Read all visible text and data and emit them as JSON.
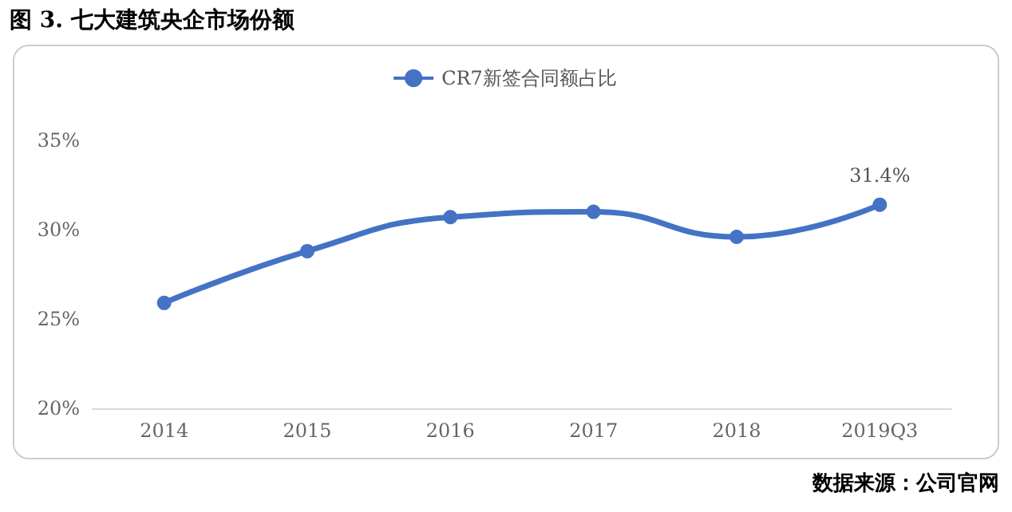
{
  "chart_data": {
    "type": "line",
    "title": "图 3. 七大建筑央企市场份额",
    "categories": [
      "2014",
      "2015",
      "2016",
      "2017",
      "2018",
      "2019Q3"
    ],
    "series": [
      {
        "name": "CR7新签合同额占比",
        "color": "#4472c4",
        "values": [
          25.9,
          28.8,
          30.7,
          31.0,
          29.6,
          31.4
        ],
        "value_labels": [
          null,
          null,
          null,
          null,
          null,
          "31.4%"
        ]
      }
    ],
    "ylim": [
      20,
      35
    ],
    "yticks": [
      {
        "value": 20,
        "label": "20%"
      },
      {
        "value": 25,
        "label": "25%"
      },
      {
        "value": 30,
        "label": "30%"
      },
      {
        "value": 35,
        "label": "35%"
      }
    ],
    "grid": false,
    "legend": "top",
    "marker": "circle",
    "line_style": "solid",
    "annotations": [
      "数据来源：公司官网"
    ]
  }
}
